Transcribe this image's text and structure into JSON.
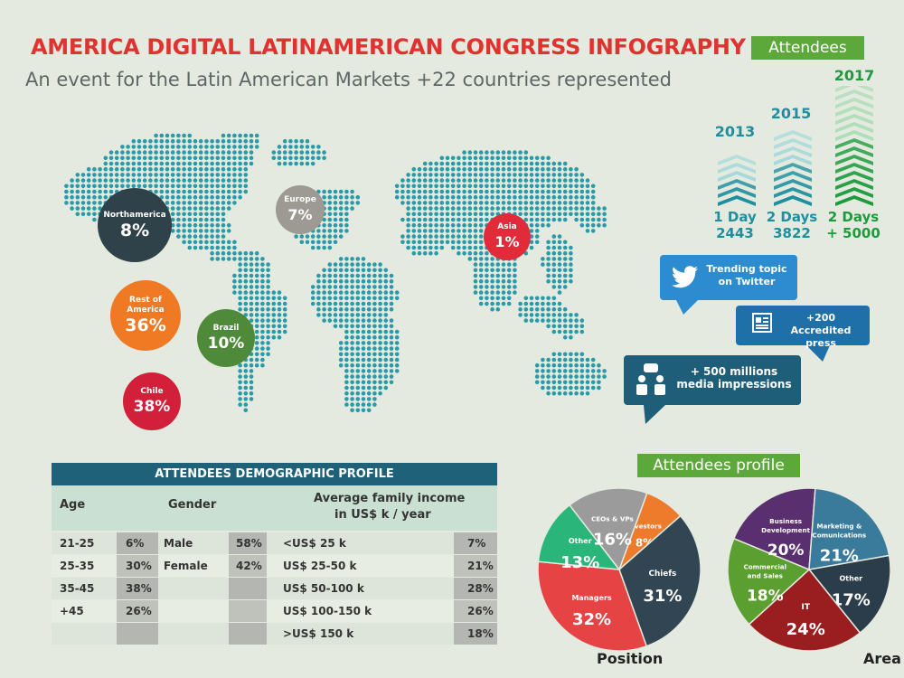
{
  "header": {
    "title": "AMERICA DIGITAL LATINAMERICAN CONGRESS INFOGRAPHY",
    "subtitle": "An event for the Latin American Markets +22 countries represented"
  },
  "regions": [
    {
      "label": "Northamerica",
      "value": "8%",
      "color": "#2f4149"
    },
    {
      "label": "Europe",
      "value": "7%",
      "color": "#9c9a92"
    },
    {
      "label": "Asia",
      "value": "1%",
      "color": "#e12b3a"
    },
    {
      "label": "Rest of America",
      "value": "36%",
      "color": "#f07a24"
    },
    {
      "label": "Brazil",
      "value": "10%",
      "color": "#4e8a3a"
    },
    {
      "label": "Chile",
      "value": "38%",
      "color": "#d3203a"
    }
  ],
  "attendees": {
    "title": "Attendees",
    "years": [
      {
        "year": "2013",
        "days": "1 Day",
        "count": "2443",
        "color": "#2b9aa6"
      },
      {
        "year": "2015",
        "days": "2 Days",
        "count": "3822",
        "color": "#2b9aa6"
      },
      {
        "year": "2017",
        "days": "2 Days",
        "count": "+ 5000",
        "color": "#2aa248"
      }
    ]
  },
  "media": {
    "twitter": "Trending topic on Twitter",
    "press": "+200 Accredited press",
    "impressions": "+ 500 millions media impressions"
  },
  "demographics": {
    "title": "ATTENDEES DEMOGRAPHIC PROFILE",
    "age_header": "Age",
    "gender_header": "Gender",
    "income_header_1": "Average family income",
    "income_header_2": "in US$ k / year",
    "rows": [
      {
        "age": "21-25",
        "age_pct": "6%",
        "gender": "Male",
        "gender_pct": "58%",
        "income": "<US$ 25 k",
        "income_pct": "7%"
      },
      {
        "age": "25-35",
        "age_pct": "30%",
        "gender": "Female",
        "gender_pct": "42%",
        "income": "US$ 25-50 k",
        "income_pct": "21%"
      },
      {
        "age": "35-45",
        "age_pct": "38%",
        "gender": "",
        "gender_pct": "",
        "income": "US$ 50-100 k",
        "income_pct": "28%"
      },
      {
        "age": "+45",
        "age_pct": "26%",
        "gender": "",
        "gender_pct": "",
        "income": "US$ 100-150 k",
        "income_pct": "26%"
      },
      {
        "age": "",
        "age_pct": "",
        "gender": "",
        "gender_pct": "",
        "income": ">US$ 150 k",
        "income_pct": "18%"
      }
    ]
  },
  "profile": {
    "title": "Attendees profile"
  },
  "chart_data": [
    {
      "type": "pie",
      "title": "Position",
      "slices": [
        {
          "label": "Investors",
          "value": 8,
          "color": "#ee7a2b"
        },
        {
          "label": "Chiefs",
          "value": 31,
          "color": "#314552"
        },
        {
          "label": "Managers",
          "value": 32,
          "color": "#e64444"
        },
        {
          "label": "Other",
          "value": 13,
          "color": "#2ab57a"
        },
        {
          "label": "CEOs & VPs",
          "value": 16,
          "color": "#9b9b9b"
        }
      ]
    },
    {
      "type": "pie",
      "title": "Area",
      "slices": [
        {
          "label": "Other",
          "value": 17,
          "color": "#2b3d4a"
        },
        {
          "label": "IT",
          "value": 24,
          "color": "#9a1e1f"
        },
        {
          "label": "Commercial and Sales",
          "value": 18,
          "color": "#5a9f2f"
        },
        {
          "label": "Business Development",
          "value": 20,
          "color": "#5a2f6f"
        },
        {
          "label": "Marketing & Comunications",
          "value": 21,
          "color": "#3a7a9a"
        }
      ]
    }
  ]
}
